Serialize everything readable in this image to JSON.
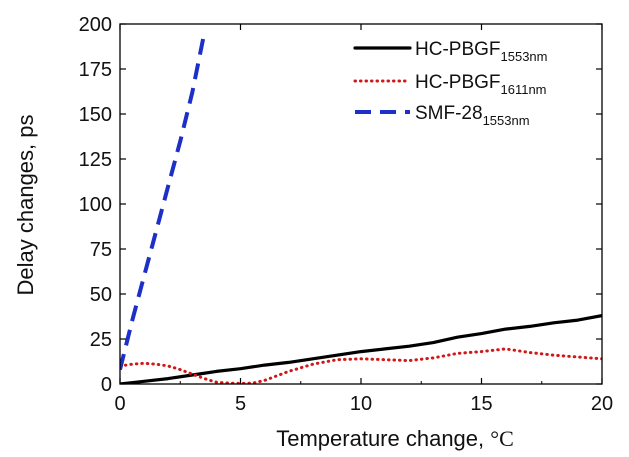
{
  "chart_data": {
    "type": "line",
    "xlabel_text": "Temperature change, ",
    "xlabel_unit": "°C",
    "ylabel": "Delay changes, ps",
    "xlim": [
      0,
      20
    ],
    "ylim": [
      0,
      200
    ],
    "xticks": [
      "0",
      "5",
      "10",
      "15",
      "20"
    ],
    "yticks": [
      "0",
      "25",
      "50",
      "75",
      "100",
      "125",
      "150",
      "175",
      "200"
    ],
    "grid": false,
    "legend_position": "top-right",
    "series": [
      {
        "name": "HC-PBGF",
        "name_sub": "1553nm",
        "color": "#000000",
        "style": "solid",
        "x": [
          0,
          1,
          2,
          3,
          4,
          5,
          6,
          7,
          8,
          9,
          10,
          11,
          12,
          13,
          14,
          15,
          16,
          17,
          18,
          19,
          20
        ],
        "y": [
          0,
          1.5,
          3,
          5,
          7,
          8.5,
          10.5,
          12,
          14,
          16,
          18,
          19.5,
          21,
          23,
          26,
          28,
          30.5,
          32,
          34,
          35.5,
          38
        ]
      },
      {
        "name": "HC-PBGF",
        "name_sub": "1611nm",
        "color": "#d01818",
        "style": "dotted",
        "x": [
          0,
          0.5,
          1,
          1.5,
          2,
          2.5,
          3,
          3.5,
          4,
          4.5,
          5,
          5.5,
          6,
          7,
          8,
          9,
          10,
          11,
          12,
          13,
          14,
          15,
          16,
          17,
          18,
          19,
          20
        ],
        "y": [
          10,
          11,
          11.5,
          11,
          10,
          8,
          5.5,
          3,
          1,
          0.5,
          0.3,
          0.5,
          2,
          7,
          11,
          13.5,
          14,
          13.5,
          13,
          14.5,
          17,
          18,
          19.5,
          17.5,
          16,
          15,
          14
        ]
      },
      {
        "name": "SMF-28",
        "name_sub": "1553nm",
        "color": "#1c2fc8",
        "style": "dashed",
        "x": [
          0,
          0.5,
          1,
          1.5,
          2,
          2.5,
          3,
          3.5
        ],
        "y": [
          8,
          35,
          60,
          85,
          110,
          135,
          162,
          195
        ]
      }
    ]
  }
}
